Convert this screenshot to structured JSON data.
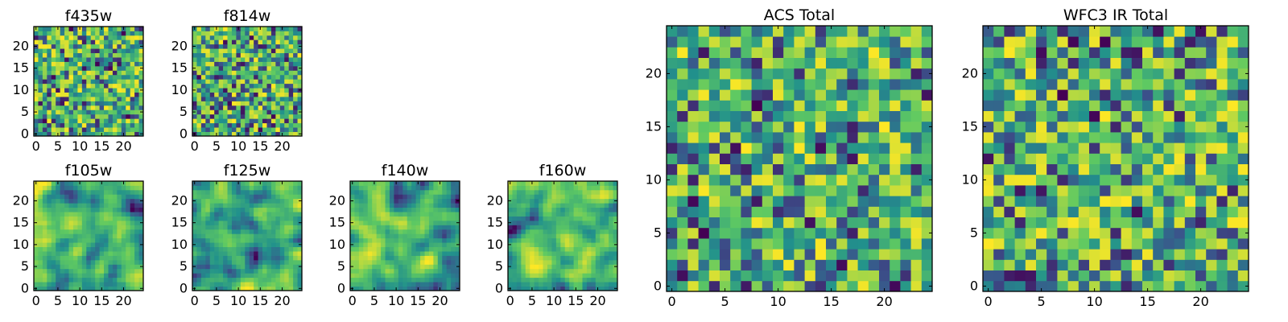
{
  "figure": {
    "type": "heatmap-grid",
    "colormap": "viridis",
    "colormap_stops": [
      "#440154",
      "#3b528b",
      "#21918c",
      "#5ec962",
      "#fde725"
    ],
    "colorbar": false
  },
  "chart_data": [
    {
      "type": "heatmap",
      "id": "f435w",
      "title": "f435w",
      "grid_size": [
        25,
        25
      ],
      "xlim": [
        0,
        24
      ],
      "ylim": [
        0,
        24
      ],
      "xticks": [
        "0",
        "5",
        "10",
        "15",
        "20"
      ],
      "yticks": [
        "0",
        "5",
        "10",
        "15",
        "20"
      ],
      "seed": 11,
      "texture": "fine"
    },
    {
      "type": "heatmap",
      "id": "f814w",
      "title": "f814w",
      "grid_size": [
        25,
        25
      ],
      "xlim": [
        0,
        24
      ],
      "ylim": [
        0,
        24
      ],
      "xticks": [
        "0",
        "5",
        "10",
        "15",
        "20"
      ],
      "yticks": [
        "0",
        "5",
        "10",
        "15",
        "20"
      ],
      "seed": 23,
      "texture": "fine"
    },
    {
      "type": "heatmap",
      "id": "f105w",
      "title": "f105w",
      "grid_size": [
        25,
        25
      ],
      "xlim": [
        0,
        24
      ],
      "ylim": [
        0,
        24
      ],
      "xticks": [
        "0",
        "5",
        "10",
        "15",
        "20"
      ],
      "yticks": [
        "0",
        "5",
        "10",
        "15",
        "20"
      ],
      "seed": 37,
      "texture": "smooth"
    },
    {
      "type": "heatmap",
      "id": "f125w",
      "title": "f125w",
      "grid_size": [
        25,
        25
      ],
      "xlim": [
        0,
        24
      ],
      "ylim": [
        0,
        24
      ],
      "xticks": [
        "0",
        "5",
        "10",
        "15",
        "20"
      ],
      "yticks": [
        "0",
        "5",
        "10",
        "15",
        "20"
      ],
      "seed": 41,
      "texture": "smooth"
    },
    {
      "type": "heatmap",
      "id": "f140w",
      "title": "f140w",
      "grid_size": [
        25,
        25
      ],
      "xlim": [
        0,
        24
      ],
      "ylim": [
        0,
        24
      ],
      "xticks": [
        "0",
        "5",
        "10",
        "15",
        "20"
      ],
      "yticks": [
        "0",
        "5",
        "10",
        "15",
        "20"
      ],
      "seed": 53,
      "texture": "smooth"
    },
    {
      "type": "heatmap",
      "id": "f160w",
      "title": "f160w",
      "grid_size": [
        25,
        25
      ],
      "xlim": [
        0,
        24
      ],
      "ylim": [
        0,
        24
      ],
      "xticks": [
        "0",
        "5",
        "10",
        "15",
        "20"
      ],
      "yticks": [
        "0",
        "5",
        "10",
        "15",
        "20"
      ],
      "seed": 67,
      "texture": "smooth"
    },
    {
      "type": "heatmap",
      "id": "acs-total",
      "title": "ACS Total",
      "grid_size": [
        25,
        25
      ],
      "xlim": [
        0,
        24
      ],
      "ylim": [
        0,
        24
      ],
      "xticks": [
        "0",
        "5",
        "10",
        "15",
        "20"
      ],
      "yticks": [
        "0",
        "5",
        "10",
        "15",
        "20"
      ],
      "seed": 79,
      "texture": "blocky"
    },
    {
      "type": "heatmap",
      "id": "wfc3-ir-total",
      "title": "WFC3 IR Total",
      "grid_size": [
        25,
        25
      ],
      "xlim": [
        0,
        24
      ],
      "ylim": [
        0,
        24
      ],
      "xticks": [
        "0",
        "5",
        "10",
        "15",
        "20"
      ],
      "yticks": [
        "0",
        "5",
        "10",
        "15",
        "20"
      ],
      "seed": 97,
      "texture": "blocky"
    }
  ]
}
